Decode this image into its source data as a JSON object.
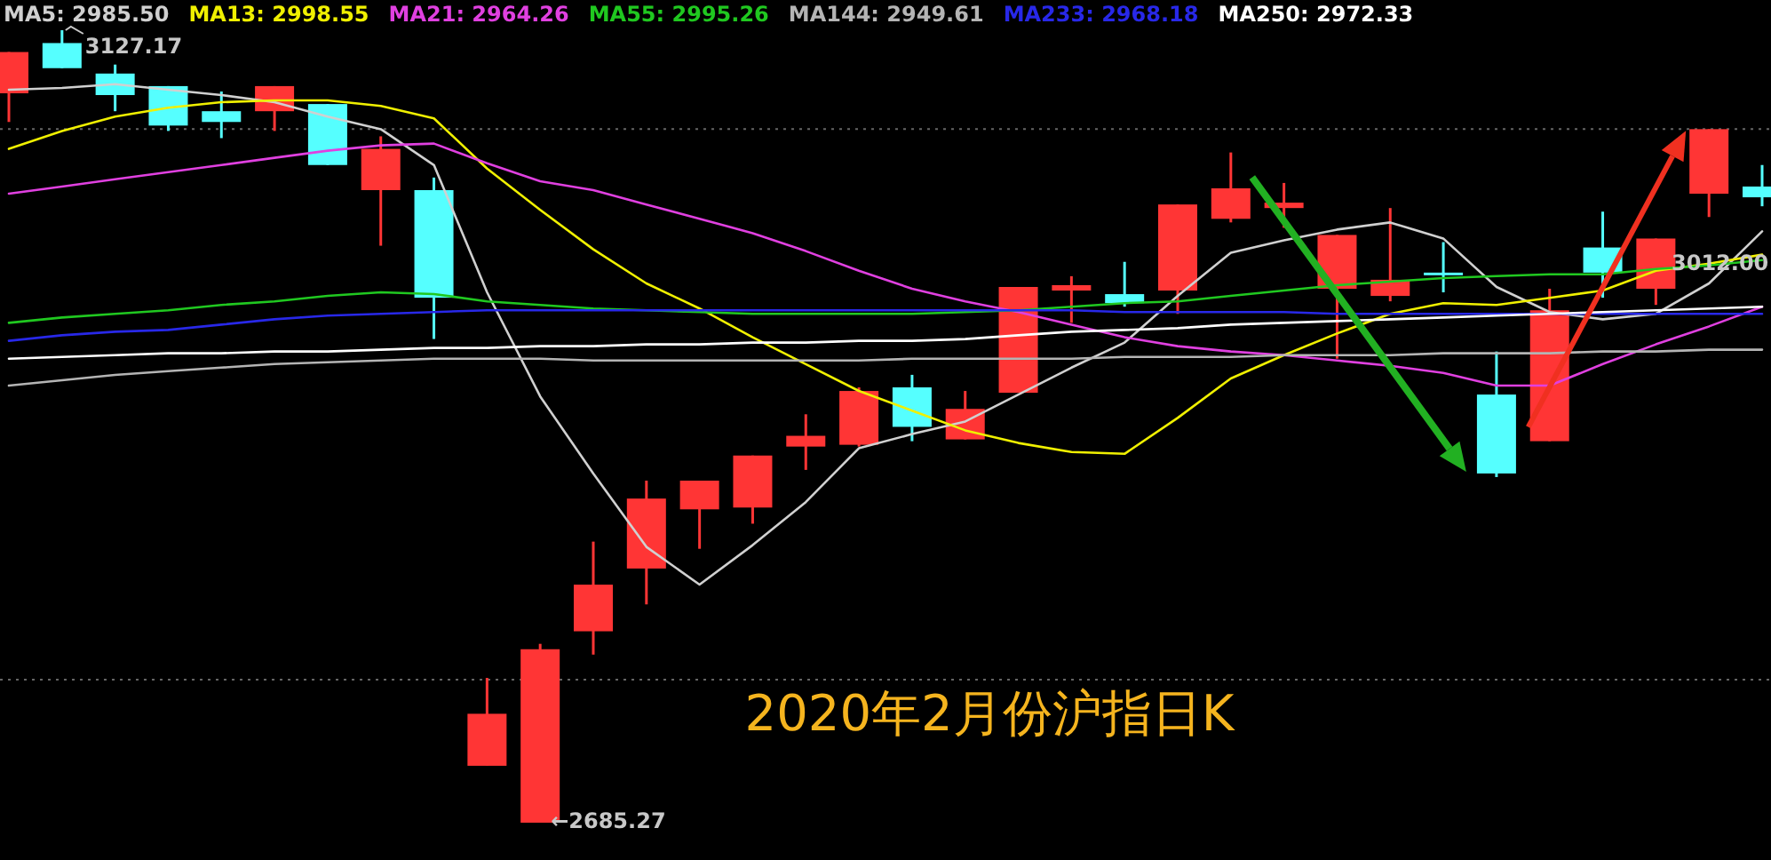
{
  "chart_data": {
    "type": "candlestick",
    "title": "2020年2月份沪指日K",
    "categories": [
      null,
      null,
      null,
      null,
      null,
      null,
      null,
      null,
      null,
      null,
      null,
      null,
      null,
      null,
      null,
      null,
      null,
      null,
      null,
      null,
      null,
      null,
      null,
      null,
      null,
      null,
      null,
      null,
      null,
      null,
      null,
      null,
      null,
      null
    ],
    "ohlc": [
      [
        3092,
        3115,
        3076,
        3115
      ],
      [
        3120,
        3127.17,
        3106,
        3106
      ],
      [
        3103,
        3108,
        3082,
        3091
      ],
      [
        3096,
        3096,
        3071,
        3074
      ],
      [
        3082,
        3093,
        3067,
        3076
      ],
      [
        3082,
        3096,
        3071,
        3096
      ],
      [
        3086,
        3086,
        3052,
        3052
      ],
      [
        3038,
        3068,
        3007,
        3061
      ],
      [
        3038,
        3045,
        2955,
        2978
      ],
      [
        2717,
        2766,
        2717,
        2746
      ],
      [
        2685.27,
        2785,
        2685.27,
        2782
      ],
      [
        2792,
        2842,
        2779,
        2818
      ],
      [
        2827,
        2876,
        2807,
        2866
      ],
      [
        2860,
        2876,
        2838,
        2876
      ],
      [
        2861,
        2890,
        2852,
        2890
      ],
      [
        2895,
        2913,
        2882,
        2901
      ],
      [
        2896,
        2928,
        2895,
        2926
      ],
      [
        2928,
        2935,
        2898,
        2906
      ],
      [
        2899,
        2926,
        2899,
        2916
      ],
      [
        2925,
        2984,
        2925,
        2984
      ],
      [
        2982,
        2990,
        2964,
        2985
      ],
      [
        2980,
        2998,
        2973,
        2975
      ],
      [
        2982,
        3030,
        2969,
        3030
      ],
      [
        3022,
        3059,
        3020,
        3039
      ],
      [
        3028,
        3042,
        3017,
        3031
      ],
      [
        2983,
        3013,
        2944,
        3013
      ],
      [
        2979,
        3028,
        2976,
        2988
      ],
      [
        2992,
        3009,
        2981,
        2991
      ],
      [
        2924,
        2948,
        2878,
        2880
      ],
      [
        2898,
        2983,
        2898,
        2971
      ],
      [
        3006,
        3026,
        2978,
        2992
      ],
      [
        2983,
        3011,
        2974,
        3011
      ],
      [
        3036,
        3072,
        3023,
        3072
      ],
      [
        3040,
        3052,
        3029,
        3034
      ]
    ],
    "colors": [
      "#ff3535",
      "#55ffff",
      "#55ffff",
      "#55ffff",
      "#55ffff",
      "#ff3535",
      "#55ffff",
      "#ff3535",
      "#55ffff",
      "#ff3535",
      "#ff3535",
      "#ff3535",
      "#ff3535",
      "#ff3535",
      "#ff3535",
      "#ff3535",
      "#ff3535",
      "#55ffff",
      "#ff3535",
      "#ff3535",
      "#ff3535",
      "#55ffff",
      "#ff3535",
      "#ff3535",
      "#ff3535",
      "#ff3535",
      "#ff3535",
      "#55ffff",
      "#55ffff",
      "#ff3535",
      "#55ffff",
      "#ff3535",
      "#ff3535",
      "#55ffff"
    ],
    "series": [
      {
        "name": "MA5: 2985.50",
        "type": "line",
        "color": "#d0d0d0",
        "values": [
          3094,
          3095,
          3097,
          3094,
          3091,
          3087,
          3079,
          3072,
          3052,
          2981,
          2923,
          2880,
          2839,
          2818,
          2840,
          2864,
          2894,
          2902,
          2909,
          2924,
          2939,
          2953,
          2979,
          3003,
          3010,
          3016,
          3020,
          3011,
          2984,
          2970,
          2966,
          2969,
          2986,
          3015
        ]
      },
      {
        "name": "MA13: 2998.55",
        "type": "line",
        "color": "#f0f000",
        "values": [
          3061,
          3071,
          3079,
          3084,
          3087,
          3088,
          3088,
          3085,
          3078,
          3050,
          3027,
          3005,
          2986,
          2972,
          2956,
          2941,
          2926,
          2915,
          2904,
          2897,
          2892,
          2891,
          2911,
          2933,
          2946,
          2958,
          2969,
          2975,
          2974,
          2978,
          2982,
          2993,
          2997,
          3002
        ]
      },
      {
        "name": "MA21: 2964.26",
        "type": "line",
        "color": "#e040e0",
        "values": [
          3036,
          3040,
          3044,
          3048,
          3052,
          3056,
          3060,
          3063,
          3064,
          3053,
          3043,
          3038,
          3030,
          3022,
          3014,
          3004,
          2993,
          2983,
          2976,
          2970,
          2963,
          2956,
          2951,
          2948,
          2946,
          2943,
          2940,
          2936,
          2929,
          2929,
          2941,
          2952,
          2962,
          2973
        ]
      },
      {
        "name": "MA55: 2995.26",
        "type": "line",
        "color": "#20c820",
        "values": [
          2964,
          2967,
          2969,
          2971,
          2974,
          2976,
          2979,
          2981,
          2980,
          2976,
          2974,
          2972,
          2971,
          2970,
          2969,
          2969,
          2969,
          2969,
          2970,
          2971,
          2973,
          2975,
          2976,
          2979,
          2982,
          2985,
          2987,
          2989,
          2990,
          2991,
          2991,
          2994,
          2996,
          2999
        ]
      },
      {
        "name": "MA144: 2949.61",
        "type": "line",
        "color": "#b4b4b4",
        "values": [
          2929,
          2932,
          2935,
          2937,
          2939,
          2941,
          2942,
          2943,
          2944,
          2944,
          2944,
          2943,
          2943,
          2943,
          2943,
          2943,
          2943,
          2944,
          2944,
          2944,
          2944,
          2945,
          2945,
          2945,
          2946,
          2946,
          2946,
          2947,
          2947,
          2947,
          2948,
          2948,
          2949,
          2949
        ]
      },
      {
        "name": "MA233: 2968.18",
        "type": "line",
        "color": "#2828e8",
        "values": [
          2954,
          2957,
          2959,
          2960,
          2963,
          2966,
          2968,
          2969,
          2970,
          2971,
          2971,
          2971,
          2971,
          2971,
          2971,
          2971,
          2971,
          2971,
          2971,
          2971,
          2971,
          2970,
          2970,
          2970,
          2970,
          2969,
          2969,
          2969,
          2969,
          2969,
          2969,
          2969,
          2969,
          2969
        ]
      },
      {
        "name": "MA250: 2972.33",
        "type": "line",
        "color": "#ffffff",
        "values": [
          2944,
          2945,
          2946,
          2947,
          2947,
          2948,
          2948,
          2949,
          2950,
          2950,
          2951,
          2951,
          2952,
          2952,
          2953,
          2953,
          2954,
          2954,
          2955,
          2957,
          2959,
          2960,
          2961,
          2963,
          2964,
          2965,
          2966,
          2967,
          2968,
          2969,
          2970,
          2971,
          2972,
          2973
        ]
      }
    ],
    "annotations": [
      "3127.17",
      "←2685.27",
      "3012.00"
    ],
    "ref_lines": [
      {
        "axis": "y",
        "value": 3072,
        "color": "#666666",
        "line_style": "dotted"
      },
      {
        "axis": "y",
        "value": 2765,
        "color": "#666666",
        "line_style": "dotted"
      }
    ],
    "legend": "top left"
  }
}
